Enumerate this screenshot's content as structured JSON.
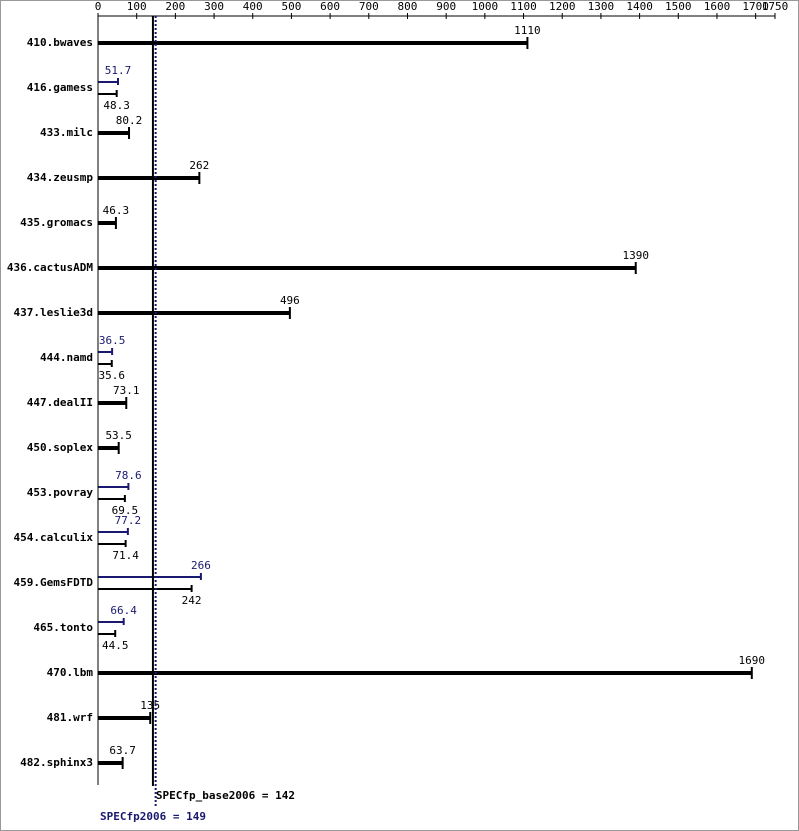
{
  "chart_data": {
    "type": "bar",
    "orientation": "horizontal",
    "categories": [
      "410.bwaves",
      "416.gamess",
      "433.milc",
      "434.zeusmp",
      "435.gromacs",
      "436.cactusADM",
      "437.leslie3d",
      "444.namd",
      "447.dealII",
      "450.soplex",
      "453.povray",
      "454.calculix",
      "459.GemsFDTD",
      "465.tonto",
      "470.lbm",
      "481.wrf",
      "482.sphinx3"
    ],
    "series": [
      {
        "color": "#000000",
        "values": [
          1110,
          48.3,
          80.2,
          262,
          46.3,
          1390,
          496,
          35.6,
          73.1,
          53.5,
          69.5,
          71.4,
          242,
          44.5,
          1690,
          135,
          63.7
        ]
      },
      {
        "color": "#191970",
        "values": [
          null,
          51.7,
          null,
          null,
          null,
          null,
          null,
          36.5,
          null,
          null,
          78.6,
          77.2,
          266,
          66.4,
          null,
          null,
          null
        ]
      }
    ],
    "xlim": [
      0,
      1750
    ],
    "xticks": [
      0,
      100,
      200,
      300,
      400,
      500,
      600,
      700,
      800,
      900,
      1000,
      1100,
      1200,
      1300,
      1400,
      1500,
      1600,
      1700,
      1750
    ],
    "reference_lines": [
      {
        "value": 142,
        "label": "SPECfp_base2006 = 142",
        "color": "#000000"
      },
      {
        "value": 149,
        "label": "SPECfp2006 = 149",
        "color": "#191970"
      }
    ]
  }
}
